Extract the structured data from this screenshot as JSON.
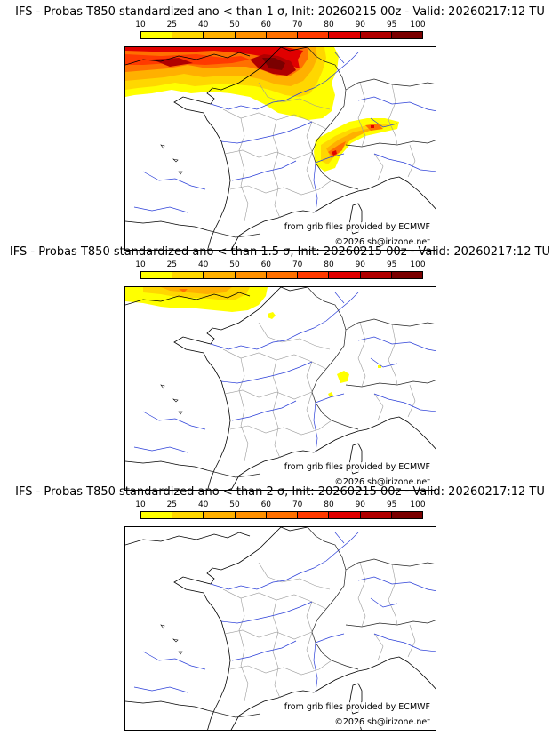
{
  "colorbar": {
    "ticks": [
      "10",
      "25",
      "40",
      "50",
      "60",
      "70",
      "80",
      "90",
      "95",
      "100"
    ],
    "colors": [
      "#ffff00",
      "#ffd700",
      "#ffb000",
      "#ff9000",
      "#ff7000",
      "#ff3a00",
      "#e00000",
      "#b00000",
      "#7a0000"
    ]
  },
  "panels": [
    {
      "title": "IFS - Probas T850  standardized ano < than 1 σ, Init: 20260215 00z - Valid: 20260217:12 TU",
      "source_credit": "from grib files provided by ECMWF",
      "copyright": "©2026 sb@irizone.net"
    },
    {
      "title": "IFS - Probas T850  standardized ano < than 1.5 σ, Init: 20260215 00z - Valid: 20260217:12 TU",
      "source_credit": "from grib files provided by ECMWF",
      "copyright": "©2026 sb@irizone.net"
    },
    {
      "title": "IFS - Probas T850  standardized ano < than 2 σ, Init: 20260215 00z - Valid: 20260217:12 TU",
      "source_credit": "from grib files provided by ECMWF",
      "copyright": "©2026 sb@irizone.net"
    }
  ]
}
